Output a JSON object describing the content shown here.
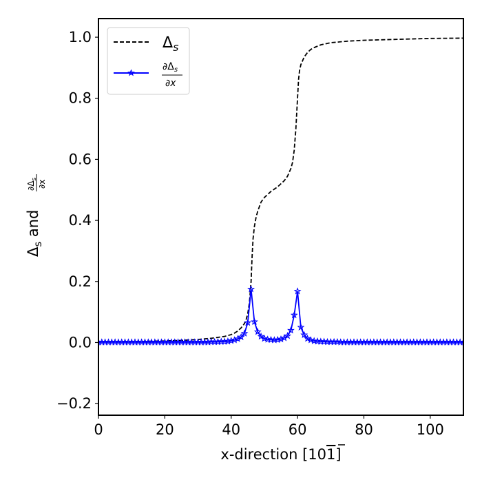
{
  "chart_data": {
    "type": "line",
    "title": "",
    "xlabel": "x-direction [10",
    "xlabel_bar_digit": "1",
    "xlabel_close": "]",
    "ylabel": {
      "main": "Δ",
      "sub": "s",
      "and": " and ",
      "frac_num": "∂Δ",
      "frac_num_sub": "s",
      "frac_den": "∂x"
    },
    "xlim": [
      0,
      110
    ],
    "ylim": [
      -0.238,
      1.061
    ],
    "xticks": [
      0,
      20,
      40,
      60,
      80,
      100
    ],
    "xtick_labels": [
      "0",
      "20",
      "40",
      "60",
      "80",
      "100"
    ],
    "yticks": [
      -0.2,
      0.0,
      0.2,
      0.4,
      0.6,
      0.8,
      1.0
    ],
    "ytick_labels": [
      "−0.2",
      "0.0",
      "0.2",
      "0.4",
      "0.6",
      "0.8",
      "1.0"
    ],
    "grid": false,
    "legend_placement": "top-left",
    "legend": [
      {
        "label": "Δ",
        "sub": "s",
        "style": "dashed",
        "color": "#000000"
      },
      {
        "label_num": "∂Δ",
        "label_num_sub": "s",
        "label_den": "∂x",
        "style": "solid-star",
        "color": "#0000ff"
      }
    ],
    "series": [
      {
        "name": "Δs",
        "color": "#000000",
        "style": "dashed",
        "x": [
          0,
          10,
          20,
          25,
          30,
          34,
          38,
          40,
          41,
          42,
          43,
          44,
          44.5,
          45,
          45.5,
          46,
          46.3,
          46.6,
          47,
          47.5,
          48,
          49,
          50,
          52,
          54,
          55,
          56,
          57,
          58,
          58.5,
          59,
          59.5,
          60,
          60.3,
          60.6,
          61,
          62,
          63,
          64,
          65,
          67,
          70,
          75,
          80,
          90,
          100,
          110
        ],
        "y": [
          0.002,
          0.003,
          0.005,
          0.007,
          0.01,
          0.014,
          0.02,
          0.026,
          0.031,
          0.038,
          0.048,
          0.062,
          0.075,
          0.095,
          0.13,
          0.2,
          0.28,
          0.34,
          0.38,
          0.41,
          0.43,
          0.46,
          0.475,
          0.495,
          0.51,
          0.52,
          0.53,
          0.545,
          0.57,
          0.59,
          0.63,
          0.7,
          0.8,
          0.86,
          0.89,
          0.91,
          0.935,
          0.95,
          0.96,
          0.966,
          0.975,
          0.982,
          0.987,
          0.99,
          0.993,
          0.996,
          0.997
        ]
      },
      {
        "name": "∂Δs/∂x",
        "color": "#0000ff",
        "style": "solid",
        "marker": "star",
        "x_start": 0,
        "x_step": 1,
        "y": [
          0.001,
          0.001,
          0.001,
          0.001,
          0.001,
          0.001,
          0.001,
          0.001,
          0.001,
          0.001,
          0.001,
          0.001,
          0.001,
          0.001,
          0.001,
          0.001,
          0.001,
          0.001,
          0.001,
          0.001,
          0.001,
          0.001,
          0.001,
          0.001,
          0.001,
          0.001,
          0.001,
          0.001,
          0.001,
          0.001,
          0.001,
          0.001,
          0.001,
          0.001,
          0.002,
          0.002,
          0.002,
          0.003,
          0.003,
          0.004,
          0.006,
          0.008,
          0.012,
          0.018,
          0.03,
          0.065,
          0.175,
          0.068,
          0.035,
          0.02,
          0.013,
          0.01,
          0.009,
          0.008,
          0.009,
          0.011,
          0.015,
          0.022,
          0.04,
          0.09,
          0.168,
          0.05,
          0.025,
          0.013,
          0.008,
          0.005,
          0.004,
          0.003,
          0.003,
          0.002,
          0.002,
          0.002,
          0.002,
          0.001,
          0.001,
          0.001,
          0.001,
          0.001,
          0.001,
          0.001,
          0.001,
          0.001,
          0.001,
          0.001,
          0.001,
          0.001,
          0.001,
          0.001,
          0.001,
          0.001,
          0.001,
          0.001,
          0.001,
          0.001,
          0.001,
          0.001,
          0.001,
          0.001,
          0.001,
          0.001,
          0.001,
          0.001,
          0.001,
          0.001,
          0.001,
          0.001,
          0.001,
          0.001,
          0.001,
          0.001,
          0.001
        ]
      }
    ]
  }
}
